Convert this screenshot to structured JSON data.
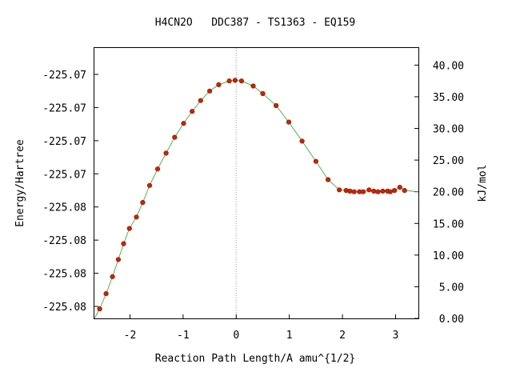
{
  "chart_data": {
    "type": "scatter",
    "title": "H4CN2O   DDC387 - TS1363 - EQ159",
    "xlabel": "Reaction Path Length/A amu^{1/2}",
    "ylabel_left": "Energy/Hartree",
    "ylabel_right": "kJ/mol",
    "xlim": [
      -2.67,
      3.43
    ],
    "ylim_kj": [
      0,
      42.7
    ],
    "x_ticks": [
      "-2",
      "-1",
      "0",
      "1",
      "2",
      "3"
    ],
    "x_tick_values": [
      -2,
      -1,
      0,
      1,
      2,
      3
    ],
    "left_ticks": [
      "-225.07",
      "-225.07",
      "-225.07",
      "-225.07",
      "-225.08",
      "-225.08",
      "-225.08",
      "-225.08"
    ],
    "right_ticks": [
      "0.00",
      "5.00",
      "10.00",
      "15.00",
      "20.00",
      "25.00",
      "30.00",
      "35.00",
      "40.00"
    ],
    "right_tick_values": [
      0,
      5,
      10,
      15,
      20,
      25,
      30,
      35,
      40
    ],
    "ts_marker_x": 0,
    "series": [
      {
        "marker_color": "#cc2200",
        "line_color": "#2aa52a",
        "x": [
          -2.57,
          -2.45,
          -2.33,
          -2.22,
          -2.12,
          -2.01,
          -1.88,
          -1.76,
          -1.63,
          -1.48,
          -1.32,
          -1.16,
          -0.99,
          -0.83,
          -0.67,
          -0.5,
          -0.33,
          -0.13,
          -0.02,
          0.1,
          0.32,
          0.5,
          0.75,
          0.99,
          1.24,
          1.5,
          1.73,
          1.94,
          2.07,
          2.14,
          2.22,
          2.32,
          2.39,
          2.5,
          2.59,
          2.67,
          2.76,
          2.85,
          2.9,
          2.98,
          3.08,
          3.17
        ],
        "y": [
          1.5,
          3.9,
          6.6,
          9.3,
          11.8,
          14.2,
          16.0,
          18.3,
          21.0,
          23.6,
          26.1,
          28.6,
          30.8,
          32.7,
          34.4,
          35.9,
          36.9,
          37.5,
          37.6,
          37.5,
          36.7,
          35.5,
          33.6,
          31.0,
          28.0,
          24.8,
          21.9,
          20.3,
          20.2,
          20.1,
          20.0,
          20.0,
          20.0,
          20.3,
          20.1,
          20.0,
          20.1,
          20.1,
          20.0,
          20.2,
          20.7,
          20.2
        ]
      }
    ]
  }
}
